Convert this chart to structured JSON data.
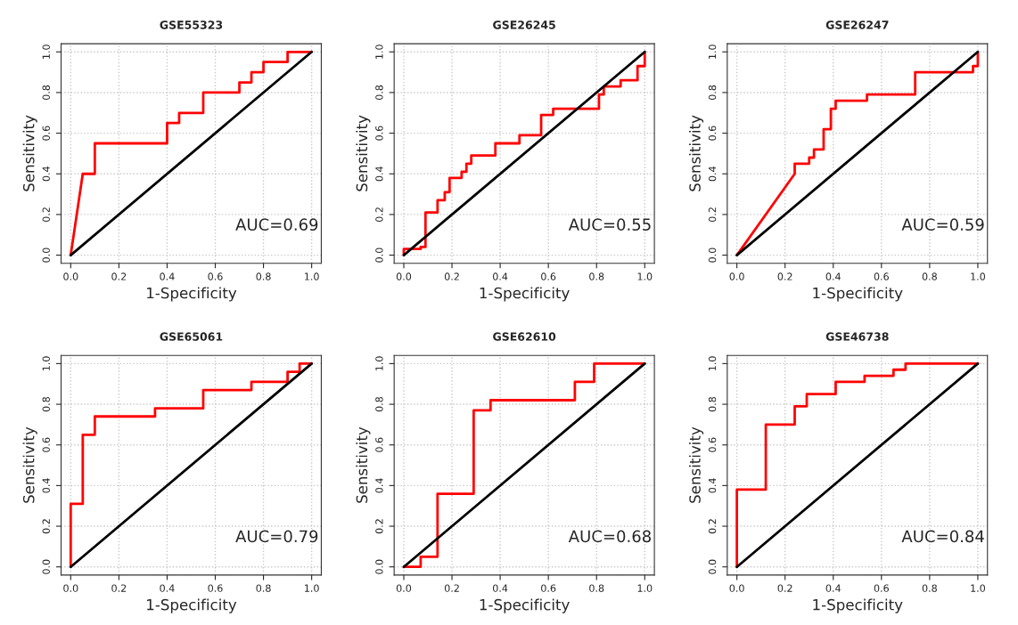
{
  "chart_data": [
    {
      "type": "line",
      "title": "GSE55323",
      "xlabel": "1-Specificity",
      "ylabel": "Sensitivity",
      "xlim": [
        -0.04,
        1.04
      ],
      "ylim": [
        -0.04,
        1.04
      ],
      "xticks": [
        {
          "value": 0,
          "label": "0.0"
        },
        {
          "value": 0.2,
          "label": "0.2"
        },
        {
          "value": 0.4,
          "label": "0.4"
        },
        {
          "value": 0.6,
          "label": "0.6"
        },
        {
          "value": 0.8,
          "label": "0.8"
        },
        {
          "value": 1,
          "label": "1.0"
        }
      ],
      "yticks": [
        {
          "value": 0,
          "label": "0.0"
        },
        {
          "value": 0.2,
          "label": "0.2"
        },
        {
          "value": 0.4,
          "label": "0.4"
        },
        {
          "value": 0.6,
          "label": "0.6"
        },
        {
          "value": 0.8,
          "label": "0.8"
        },
        {
          "value": 1,
          "label": "1.0"
        }
      ],
      "grid": true,
      "annotations": [
        "AUC=0.69"
      ],
      "series": [
        {
          "color": "#ff0000",
          "x": [
            0,
            0.05,
            0.1,
            0.1,
            0.4,
            0.4,
            0.45,
            0.45,
            0.55,
            0.55,
            0.7,
            0.7,
            0.75,
            0.75,
            0.8,
            0.8,
            0.9,
            0.9,
            1
          ],
          "values": [
            0,
            0.4,
            0.4,
            0.55,
            0.55,
            0.65,
            0.65,
            0.7,
            0.7,
            0.8,
            0.8,
            0.85,
            0.85,
            0.9,
            0.9,
            0.95,
            0.95,
            1,
            1
          ]
        },
        {
          "color": "#000000",
          "x": [
            0,
            1
          ],
          "values": [
            0,
            1
          ]
        }
      ]
    },
    {
      "type": "line",
      "title": "GSE26245",
      "xlabel": "1-Specificity",
      "ylabel": "Sensitivity",
      "xlim": [
        -0.04,
        1.04
      ],
      "ylim": [
        -0.04,
        1.04
      ],
      "xticks": [
        {
          "value": 0,
          "label": "0.0"
        },
        {
          "value": 0.2,
          "label": "0.2"
        },
        {
          "value": 0.4,
          "label": "0.4"
        },
        {
          "value": 0.6,
          "label": "0.6"
        },
        {
          "value": 0.8,
          "label": "0.8"
        },
        {
          "value": 1,
          "label": "1.0"
        }
      ],
      "yticks": [
        {
          "value": 0,
          "label": "0.0"
        },
        {
          "value": 0.2,
          "label": "0.2"
        },
        {
          "value": 0.4,
          "label": "0.4"
        },
        {
          "value": 0.6,
          "label": "0.6"
        },
        {
          "value": 0.8,
          "label": "0.8"
        },
        {
          "value": 1,
          "label": "1.0"
        }
      ],
      "grid": true,
      "annotations": [
        "AUC=0.55"
      ],
      "series": [
        {
          "color": "#ff0000",
          "x": [
            0,
            0,
            0.07,
            0.07,
            0.09,
            0.09,
            0.14,
            0.14,
            0.17,
            0.17,
            0.19,
            0.19,
            0.24,
            0.24,
            0.26,
            0.26,
            0.28,
            0.28,
            0.38,
            0.38,
            0.48,
            0.48,
            0.57,
            0.57,
            0.62,
            0.62,
            0.81,
            0.81,
            0.83,
            0.83,
            0.9,
            0.9,
            0.97,
            0.97,
            1,
            1
          ],
          "values": [
            0,
            0.03,
            0.03,
            0.04,
            0.04,
            0.21,
            0.21,
            0.27,
            0.27,
            0.31,
            0.31,
            0.38,
            0.38,
            0.41,
            0.41,
            0.45,
            0.45,
            0.49,
            0.49,
            0.55,
            0.55,
            0.59,
            0.59,
            0.69,
            0.69,
            0.72,
            0.72,
            0.79,
            0.79,
            0.83,
            0.83,
            0.86,
            0.86,
            0.93,
            0.93,
            1
          ]
        },
        {
          "color": "#000000",
          "x": [
            0,
            1
          ],
          "values": [
            0,
            1
          ]
        }
      ]
    },
    {
      "type": "line",
      "title": "GSE26247",
      "xlabel": "1-Specificity",
      "ylabel": "Sensitivity",
      "xlim": [
        -0.04,
        1.04
      ],
      "ylim": [
        -0.04,
        1.04
      ],
      "xticks": [
        {
          "value": 0,
          "label": "0.0"
        },
        {
          "value": 0.2,
          "label": "0.2"
        },
        {
          "value": 0.4,
          "label": "0.4"
        },
        {
          "value": 0.6,
          "label": "0.6"
        },
        {
          "value": 0.8,
          "label": "0.8"
        },
        {
          "value": 1,
          "label": "1.0"
        }
      ],
      "yticks": [
        {
          "value": 0,
          "label": "0.0"
        },
        {
          "value": 0.2,
          "label": "0.2"
        },
        {
          "value": 0.4,
          "label": "0.4"
        },
        {
          "value": 0.6,
          "label": "0.6"
        },
        {
          "value": 0.8,
          "label": "0.8"
        },
        {
          "value": 1,
          "label": "1.0"
        }
      ],
      "grid": true,
      "annotations": [
        "AUC=0.59"
      ],
      "series": [
        {
          "color": "#ff0000",
          "x": [
            0,
            0.24,
            0.24,
            0.3,
            0.3,
            0.32,
            0.32,
            0.36,
            0.36,
            0.39,
            0.39,
            0.41,
            0.41,
            0.54,
            0.54,
            0.74,
            0.74,
            0.98,
            0.98,
            1,
            1
          ],
          "values": [
            0,
            0.4,
            0.45,
            0.45,
            0.48,
            0.48,
            0.52,
            0.52,
            0.62,
            0.62,
            0.72,
            0.72,
            0.76,
            0.76,
            0.79,
            0.79,
            0.9,
            0.9,
            0.93,
            0.93,
            1
          ]
        },
        {
          "color": "#000000",
          "x": [
            0,
            1
          ],
          "values": [
            0,
            1
          ]
        }
      ]
    },
    {
      "type": "line",
      "title": "GSE65061",
      "xlabel": "1-Specificity",
      "ylabel": "Sensitivity",
      "xlim": [
        -0.04,
        1.04
      ],
      "ylim": [
        -0.04,
        1.04
      ],
      "xticks": [
        {
          "value": 0,
          "label": "0.0"
        },
        {
          "value": 0.2,
          "label": "0.2"
        },
        {
          "value": 0.4,
          "label": "0.4"
        },
        {
          "value": 0.6,
          "label": "0.6"
        },
        {
          "value": 0.8,
          "label": "0.8"
        },
        {
          "value": 1,
          "label": "1.0"
        }
      ],
      "yticks": [
        {
          "value": 0,
          "label": "0.0"
        },
        {
          "value": 0.2,
          "label": "0.2"
        },
        {
          "value": 0.4,
          "label": "0.4"
        },
        {
          "value": 0.6,
          "label": "0.6"
        },
        {
          "value": 0.8,
          "label": "0.8"
        },
        {
          "value": 1,
          "label": "1.0"
        }
      ],
      "grid": true,
      "annotations": [
        "AUC=0.79"
      ],
      "series": [
        {
          "color": "#ff0000",
          "x": [
            0,
            0,
            0.05,
            0.05,
            0.1,
            0.1,
            0.35,
            0.35,
            0.55,
            0.55,
            0.75,
            0.75,
            0.9,
            0.9,
            0.95,
            0.95,
            1
          ],
          "values": [
            0,
            0.31,
            0.31,
            0.65,
            0.65,
            0.74,
            0.74,
            0.78,
            0.78,
            0.87,
            0.87,
            0.91,
            0.91,
            0.96,
            0.96,
            1,
            1
          ]
        },
        {
          "color": "#000000",
          "x": [
            0,
            1
          ],
          "values": [
            0,
            1
          ]
        }
      ]
    },
    {
      "type": "line",
      "title": "GSE62610",
      "xlabel": "1-Specificity",
      "ylabel": "Sensitivity",
      "xlim": [
        -0.04,
        1.04
      ],
      "ylim": [
        -0.04,
        1.04
      ],
      "xticks": [
        {
          "value": 0,
          "label": "0.0"
        },
        {
          "value": 0.2,
          "label": "0.2"
        },
        {
          "value": 0.4,
          "label": "0.4"
        },
        {
          "value": 0.6,
          "label": "0.6"
        },
        {
          "value": 0.8,
          "label": "0.8"
        },
        {
          "value": 1,
          "label": "1.0"
        }
      ],
      "yticks": [
        {
          "value": 0,
          "label": "0.0"
        },
        {
          "value": 0.2,
          "label": "0.2"
        },
        {
          "value": 0.4,
          "label": "0.4"
        },
        {
          "value": 0.6,
          "label": "0.6"
        },
        {
          "value": 0.8,
          "label": "0.8"
        },
        {
          "value": 1,
          "label": "1.0"
        }
      ],
      "grid": true,
      "annotations": [
        "AUC=0.68"
      ],
      "series": [
        {
          "color": "#ff0000",
          "x": [
            0,
            0.07,
            0.07,
            0.14,
            0.14,
            0.29,
            0.29,
            0.36,
            0.36,
            0.71,
            0.71,
            0.79,
            0.79,
            1
          ],
          "values": [
            0,
            0,
            0.05,
            0.05,
            0.36,
            0.36,
            0.77,
            0.77,
            0.82,
            0.82,
            0.91,
            0.91,
            1,
            1
          ]
        },
        {
          "color": "#000000",
          "x": [
            0,
            1
          ],
          "values": [
            0,
            1
          ]
        }
      ]
    },
    {
      "type": "line",
      "title": "GSE46738",
      "xlabel": "1-Specificity",
      "ylabel": "Sensitivity",
      "xlim": [
        -0.04,
        1.04
      ],
      "ylim": [
        -0.04,
        1.04
      ],
      "xticks": [
        {
          "value": 0,
          "label": "0.0"
        },
        {
          "value": 0.2,
          "label": "0.2"
        },
        {
          "value": 0.4,
          "label": "0.4"
        },
        {
          "value": 0.6,
          "label": "0.6"
        },
        {
          "value": 0.8,
          "label": "0.8"
        },
        {
          "value": 1,
          "label": "1.0"
        }
      ],
      "yticks": [
        {
          "value": 0,
          "label": "0.0"
        },
        {
          "value": 0.2,
          "label": "0.2"
        },
        {
          "value": 0.4,
          "label": "0.4"
        },
        {
          "value": 0.6,
          "label": "0.6"
        },
        {
          "value": 0.8,
          "label": "0.8"
        },
        {
          "value": 1,
          "label": "1.0"
        }
      ],
      "grid": true,
      "annotations": [
        "AUC=0.84"
      ],
      "series": [
        {
          "color": "#ff0000",
          "x": [
            0,
            0,
            0.12,
            0.12,
            0.24,
            0.24,
            0.29,
            0.29,
            0.41,
            0.41,
            0.53,
            0.53,
            0.65,
            0.65,
            0.7,
            0.7,
            1
          ],
          "values": [
            0,
            0.38,
            0.38,
            0.7,
            0.7,
            0.79,
            0.79,
            0.85,
            0.85,
            0.91,
            0.91,
            0.94,
            0.94,
            0.97,
            0.97,
            1,
            1
          ]
        },
        {
          "color": "#000000",
          "x": [
            0,
            1
          ],
          "values": [
            0,
            1
          ]
        }
      ]
    }
  ]
}
